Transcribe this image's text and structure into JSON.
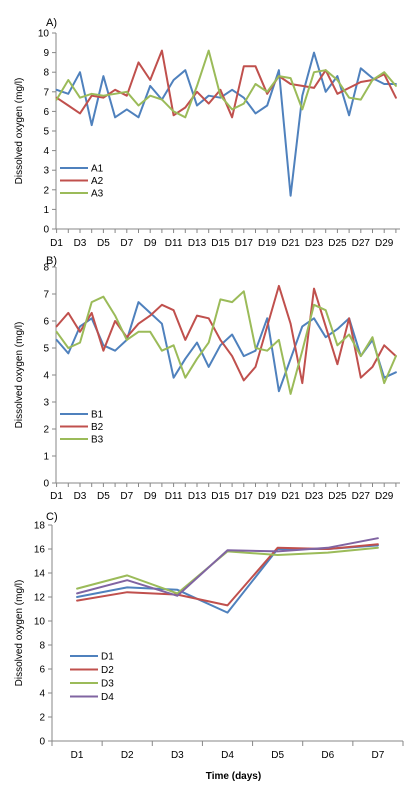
{
  "figure": {
    "x_title": "Time (days)"
  },
  "colors": {
    "series1": "#4f81bd",
    "series2": "#c0504d",
    "series3": "#9bbb59",
    "series4": "#8064a2",
    "axis": "#878787",
    "grid": "#d9d9d9"
  },
  "chart_data": [
    {
      "id": "A",
      "panel_label": "A)",
      "type": "line",
      "ylabel": "Dissolved oxygen (mg/l)",
      "ylim": [
        0,
        10
      ],
      "yticks": [
        0,
        1,
        2,
        3,
        4,
        5,
        6,
        7,
        8,
        9,
        10
      ],
      "categories": [
        "D1",
        "D2",
        "D3",
        "D4",
        "D5",
        "D6",
        "D7",
        "D8",
        "D9",
        "D10",
        "D11",
        "D12",
        "D13",
        "D14",
        "D15",
        "D16",
        "D17",
        "D18",
        "D19",
        "D20",
        "D21",
        "D22",
        "D23",
        "D24",
        "D25",
        "D26",
        "D27",
        "D28",
        "D29",
        "D30"
      ],
      "x_tick_labels": [
        "D1",
        "D3",
        "D5",
        "D7",
        "D9",
        "D11",
        "D13",
        "D15",
        "D17",
        "D19",
        "D21",
        "D23",
        "D25",
        "D27",
        "D29"
      ],
      "legend_position": "bottom-left",
      "series": [
        {
          "name": "A1",
          "values": [
            7.1,
            6.9,
            8.0,
            5.3,
            7.8,
            5.7,
            6.1,
            5.7,
            7.3,
            6.6,
            7.6,
            8.1,
            6.3,
            6.8,
            6.7,
            7.1,
            6.7,
            5.9,
            6.3,
            8.1,
            1.7,
            6.8,
            9.0,
            7.0,
            7.8,
            5.8,
            8.2,
            7.7,
            7.4,
            7.4
          ]
        },
        {
          "name": "A2",
          "values": [
            6.7,
            6.3,
            5.9,
            6.8,
            6.7,
            7.1,
            6.8,
            8.5,
            7.6,
            9.1,
            5.8,
            6.2,
            7.0,
            6.4,
            7.1,
            5.7,
            8.3,
            8.3,
            6.9,
            7.8,
            7.4,
            7.3,
            7.2,
            8.1,
            6.9,
            7.2,
            7.5,
            7.6,
            7.9,
            6.7
          ]
        },
        {
          "name": "A3",
          "values": [
            6.6,
            7.6,
            6.7,
            6.9,
            6.8,
            6.9,
            7.0,
            6.3,
            6.8,
            6.6,
            6.0,
            5.7,
            7.3,
            9.1,
            6.8,
            6.1,
            6.4,
            7.4,
            7.0,
            7.8,
            7.7,
            6.1,
            8.0,
            8.1,
            7.6,
            6.7,
            6.6,
            7.6,
            8.0,
            7.3
          ]
        }
      ]
    },
    {
      "id": "B",
      "panel_label": "B)",
      "type": "line",
      "ylabel": "Dissolved oxygen (mg/l)",
      "ylim": [
        0,
        8
      ],
      "yticks": [
        0,
        1,
        2,
        3,
        4,
        5,
        6,
        7,
        8
      ],
      "categories": [
        "D1",
        "D2",
        "D3",
        "D4",
        "D5",
        "D6",
        "D7",
        "D8",
        "D9",
        "D10",
        "D11",
        "D12",
        "D13",
        "D14",
        "D15",
        "D16",
        "D17",
        "D18",
        "D19",
        "D20",
        "D21",
        "D22",
        "D23",
        "D24",
        "D25",
        "D26",
        "D27",
        "D28",
        "D29",
        "D30"
      ],
      "x_tick_labels": [
        "D1",
        "D3",
        "D5",
        "D7",
        "D9",
        "D11",
        "D13",
        "D15",
        "D17",
        "D19",
        "D21",
        "D23",
        "D25",
        "D27",
        "D29"
      ],
      "legend_position": "bottom-left",
      "series": [
        {
          "name": "B1",
          "values": [
            5.3,
            4.8,
            5.8,
            6.1,
            5.1,
            4.9,
            5.3,
            6.7,
            6.3,
            5.9,
            3.9,
            4.6,
            5.2,
            4.3,
            5.1,
            5.5,
            4.7,
            4.9,
            6.1,
            3.4,
            4.6,
            5.8,
            6.1,
            5.4,
            5.7,
            6.1,
            4.7,
            5.3,
            3.9,
            4.1
          ]
        },
        {
          "name": "B2",
          "values": [
            5.8,
            6.3,
            5.6,
            6.3,
            4.9,
            6.0,
            5.4,
            5.9,
            6.2,
            6.6,
            6.4,
            5.3,
            6.2,
            6.1,
            5.3,
            4.7,
            3.8,
            4.3,
            5.8,
            7.3,
            5.9,
            3.7,
            7.2,
            5.8,
            4.4,
            6.1,
            3.9,
            4.3,
            5.1,
            4.7
          ]
        },
        {
          "name": "B3",
          "values": [
            5.6,
            5.0,
            5.2,
            6.7,
            6.9,
            6.2,
            5.3,
            5.6,
            5.6,
            4.9,
            5.1,
            3.9,
            4.6,
            5.2,
            6.8,
            6.7,
            7.1,
            5.0,
            4.9,
            5.3,
            3.3,
            4.9,
            6.6,
            6.4,
            5.1,
            5.5,
            4.7,
            5.4,
            3.7,
            4.7
          ]
        }
      ]
    },
    {
      "id": "C",
      "panel_label": "C)",
      "type": "line",
      "ylabel": "Dissolved oxygen (mg/l)",
      "xlabel": "Time (days)",
      "ylim": [
        0,
        18
      ],
      "yticks": [
        0,
        2,
        4,
        6,
        8,
        10,
        12,
        14,
        16,
        18
      ],
      "categories": [
        "D1",
        "D2",
        "D3",
        "D4",
        "D5",
        "D6",
        "D7"
      ],
      "x_tick_labels": [
        "D1",
        "D2",
        "D3",
        "D4",
        "D5",
        "D6",
        "D7"
      ],
      "legend_position": "bottom-left",
      "series": [
        {
          "name": "D1",
          "values": [
            12.0,
            12.8,
            12.6,
            10.7,
            16.0,
            16.0,
            16.3
          ]
        },
        {
          "name": "D2",
          "values": [
            11.7,
            12.4,
            12.2,
            11.3,
            16.1,
            16.0,
            16.4
          ]
        },
        {
          "name": "D3",
          "values": [
            12.7,
            13.8,
            12.3,
            15.8,
            15.5,
            15.7,
            16.1
          ]
        },
        {
          "name": "D4",
          "values": [
            12.3,
            13.4,
            12.1,
            15.9,
            15.8,
            16.1,
            16.9
          ]
        }
      ]
    }
  ]
}
